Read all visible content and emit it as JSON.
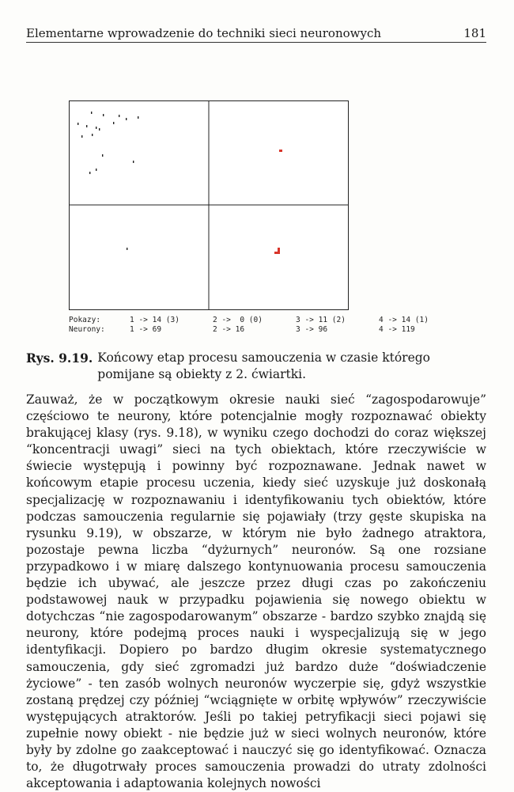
{
  "header": {
    "title": "Elementarne wprowadzenie do techniki sieci neuronowych",
    "page_number": "181"
  },
  "figure": {
    "legend": {
      "rows": [
        {
          "label": "Pokazy:",
          "cells": [
            "1 -> 14 (3)",
            "2 ->  0 (0)",
            "3 -> 11 (2)",
            "4 -> 14 (1)"
          ]
        },
        {
          "label": "Neurony:",
          "cells": [
            "1 -> 69",
            "2 -> 16",
            "3 -> 96",
            "4 -> 119"
          ]
        }
      ]
    },
    "marker_color": "#d8352a"
  },
  "caption": {
    "label": "Rys. 9.19.",
    "text": "Końcowy etap procesu samouczenia w czasie którego pomijane są obiekty z 2. ćwiartki."
  },
  "body": {
    "paragraph": "Zauważ, że w początkowym okresie nauki sieć “zagospodarowuje” częściowo te neurony, które potencjalnie mogły rozpoznawać obiekty brakującej klasy (rys. 9.18), w wyniku czego dochodzi do coraz większej “koncentracji uwagi” sieci na tych obiektach, które rzeczywiście w świecie występują i powinny być rozpoznawane. Jednak nawet w końcowym etapie procesu uczenia, kiedy sieć uzyskuje już doskonałą specjalizację w rozpoznawaniu i identyfikowaniu tych obiektów, które podczas samouczenia regularnie się pojawiały (trzy gęste skupiska na rysunku 9.19), w obszarze, w którym nie było żadnego atraktora, pozostaje pewna liczba “dyżurnych” neuronów. Są one rozsiane przypadkowo i w miarę dalszego kontynuowania procesu samouczenia będzie ich ubywać, ale jeszcze przez długi czas po zakończeniu podstawowej nauk w przypadku pojawienia się nowego obiektu w dotychczas “nie zagospodarowanym” obszarze - bardzo szybko znajdą się neurony, które podejmą proces nauki i wyspecjalizują się w jego identyfikacji. Dopiero po bardzo długim okresie systematycznego samouczenia, gdy sieć zgromadzi już bardzo duże “doświadczenie życiowe” - ten zasób wolnych neuronów wyczerpie się, gdyż wszystkie zostaną prędzej czy później “wciągnięte w orbitę wpływów” rzeczywiście występujących atraktorów. Jeśli po takiej petryfikacji sieci pojawi się zupełnie nowy obiekt - nie będzie już w sieci wolnych neuronów, które były by zdolne go zaakceptować i nauczyć się go identyfikować. Oznacza to, że długotrwały proces samouczenia prowadzi do utraty zdolności akceptowania i adaptowania kolejnych nowości"
  }
}
